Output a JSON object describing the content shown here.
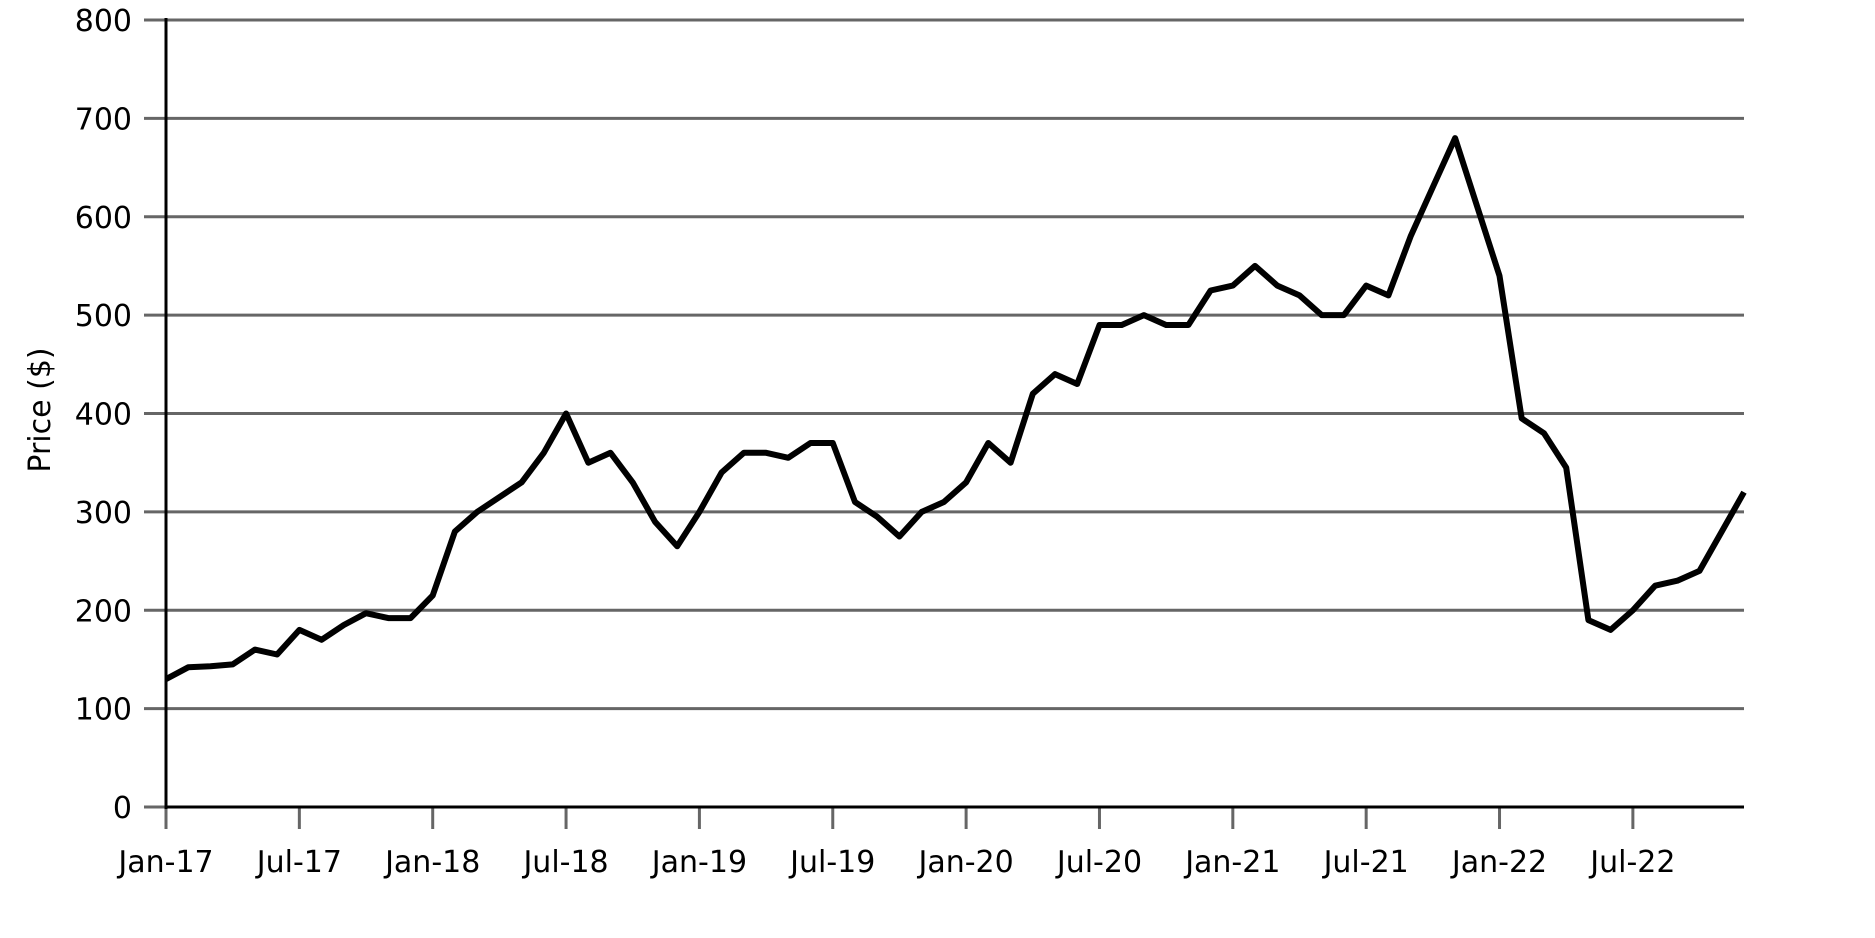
{
  "chart_data": {
    "type": "line",
    "y_label": "Price ($)",
    "x": [
      "2017-01",
      "2017-02",
      "2017-03",
      "2017-04",
      "2017-05",
      "2017-06",
      "2017-07",
      "2017-08",
      "2017-09",
      "2017-10",
      "2017-11",
      "2017-12",
      "2018-01",
      "2018-02",
      "2018-03",
      "2018-04",
      "2018-05",
      "2018-06",
      "2018-07",
      "2018-08",
      "2018-09",
      "2018-10",
      "2018-11",
      "2018-12",
      "2019-01",
      "2019-02",
      "2019-03",
      "2019-04",
      "2019-05",
      "2019-06",
      "2019-07",
      "2019-08",
      "2019-09",
      "2019-10",
      "2019-11",
      "2019-12",
      "2020-01",
      "2020-02",
      "2020-03",
      "2020-04",
      "2020-05",
      "2020-06",
      "2020-07",
      "2020-08",
      "2020-09",
      "2020-10",
      "2020-11",
      "2020-12",
      "2021-01",
      "2021-02",
      "2021-03",
      "2021-04",
      "2021-05",
      "2021-06",
      "2021-07",
      "2021-08",
      "2021-09",
      "2021-10",
      "2021-11",
      "2021-12",
      "2022-01",
      "2022-02",
      "2022-03",
      "2022-04",
      "2022-05",
      "2022-06",
      "2022-07",
      "2022-08",
      "2022-09",
      "2022-10",
      "2022-11",
      "2022-12"
    ],
    "values": [
      130,
      142,
      143,
      145,
      160,
      155,
      180,
      170,
      185,
      197,
      192,
      192,
      215,
      280,
      300,
      315,
      330,
      360,
      400,
      350,
      360,
      330,
      290,
      265,
      300,
      340,
      360,
      360,
      355,
      370,
      370,
      310,
      295,
      275,
      300,
      310,
      330,
      370,
      350,
      420,
      440,
      430,
      490,
      490,
      500,
      490,
      490,
      525,
      530,
      550,
      530,
      520,
      500,
      500,
      530,
      520,
      580,
      630,
      680,
      610,
      540,
      395,
      380,
      345,
      190,
      180,
      200,
      225,
      230,
      240,
      280,
      320
    ],
    "color": "#000000",
    "xlim": [
      "2017-01",
      "2022-12"
    ],
    "xticks": [
      {
        "value": "2017-01",
        "label": "Jan-17"
      },
      {
        "value": "2017-07",
        "label": "Jul-17"
      },
      {
        "value": "2018-01",
        "label": "Jan-18"
      },
      {
        "value": "2018-07",
        "label": "Jul-18"
      },
      {
        "value": "2019-01",
        "label": "Jan-19"
      },
      {
        "value": "2019-07",
        "label": "Jul-19"
      },
      {
        "value": "2020-01",
        "label": "Jan-20"
      },
      {
        "value": "2020-07",
        "label": "Jul-20"
      },
      {
        "value": "2021-01",
        "label": "Jan-21"
      },
      {
        "value": "2021-07",
        "label": "Jul-21"
      },
      {
        "value": "2022-01",
        "label": "Jan-22"
      },
      {
        "value": "2022-07",
        "label": "Jul-22"
      }
    ],
    "ylim": [
      0,
      800
    ],
    "yticks": [
      0,
      100,
      200,
      300,
      400,
      500,
      600,
      700,
      800
    ],
    "grid": true
  }
}
